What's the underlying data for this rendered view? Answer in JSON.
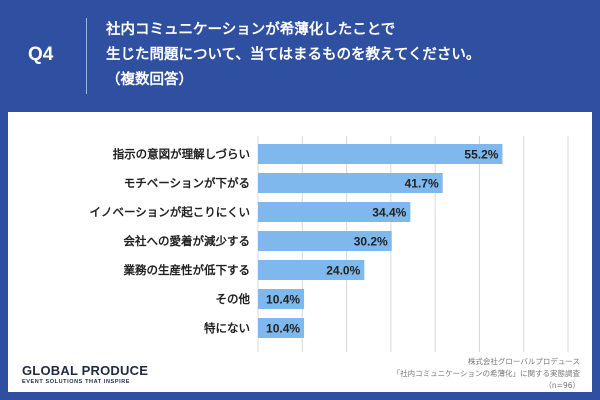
{
  "header": {
    "q_label": "Q4",
    "question_lines": [
      "社内コミュニケーションが希薄化したことで",
      "生じた問題について、当てはまるものを教えてください。",
      "（複数回答）"
    ]
  },
  "colors": {
    "background": "#2f4fa0",
    "bar": "#7eb8ec",
    "grid": "#d8d8d8"
  },
  "chart_data": {
    "type": "bar",
    "orientation": "horizontal",
    "categories": [
      "指示の意図が理解しづらい",
      "モチベーションが下がる",
      "イノベーションが起こりにくい",
      "会社への愛着が減少する",
      "業務の生産性が低下する",
      "その他",
      "特にない"
    ],
    "values": [
      55.2,
      41.7,
      34.4,
      30.2,
      24.0,
      10.4,
      10.4
    ],
    "value_labels": [
      "55.2%",
      "41.7%",
      "34.4%",
      "30.2%",
      "24.0%",
      "10.4%",
      "10.4%"
    ],
    "xlim": [
      0,
      70
    ],
    "grid": true
  },
  "footer": {
    "logo_main": "GLOBAL PRODUCE",
    "logo_sub": "EVENT SOLUTIONS THAT INSPIRE",
    "source_lines": [
      "株式会社グローバルプロデュース",
      "「社内コミュニケーションの希薄化」に関する実態調査",
      "（n=96）"
    ]
  }
}
